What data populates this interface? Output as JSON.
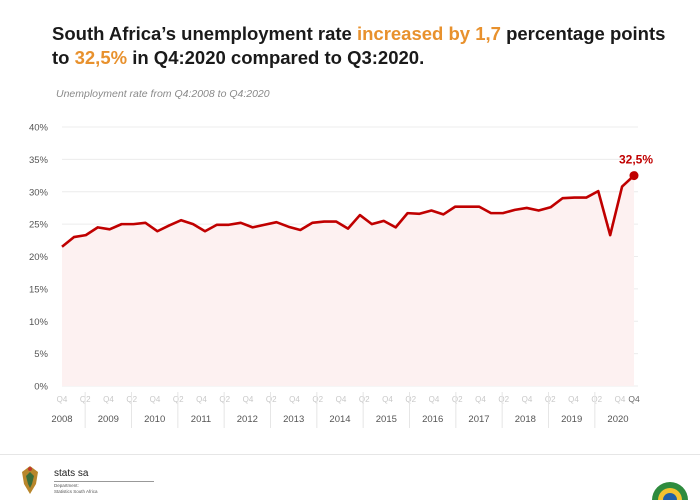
{
  "headline": {
    "part1": "South Africa’s unemployment rate ",
    "highlight1": "increased by 1,7",
    "part2": " percentage points to ",
    "highlight2": "32,5%",
    "part3": " in Q4:2020 compared to Q3:2020."
  },
  "subtitle": "Unemployment rate from Q4:2008 to Q4:2020",
  "colors": {
    "line": "#c00000",
    "highlight": "#e8912d",
    "fill": "#fdf1f1",
    "grid": "#ececec",
    "axis_text": "#555555",
    "quarter_text": "#c8c8c8"
  },
  "chart_data": {
    "type": "area",
    "title": "Unemployment rate from Q4:2008 to Q4:2020",
    "y_ticks": [
      "0%",
      "5%",
      "10%",
      "15%",
      "20%",
      "25%",
      "30%",
      "35%",
      "40%"
    ],
    "ylim": [
      0,
      40
    ],
    "year_labels": [
      "2008",
      "2009",
      "2010",
      "2011",
      "2012",
      "2013",
      "2014",
      "2015",
      "2016",
      "2017",
      "2018",
      "2019",
      "2020"
    ],
    "quarter_labels": [
      "Q4",
      "Q2",
      "Q4",
      "Q2",
      "Q4",
      "Q2",
      "Q4",
      "Q2",
      "Q4",
      "Q2",
      "Q4",
      "Q2",
      "Q4",
      "Q2",
      "Q4",
      "Q2",
      "Q4",
      "Q2",
      "Q4",
      "Q2",
      "Q4",
      "Q2",
      "Q4",
      "Q2",
      "Q4"
    ],
    "final_quarter_label": "Q4",
    "end_label": "32,5%",
    "series": [
      {
        "values": [
          21.5,
          23.0,
          23.3,
          24.5,
          24.2,
          25.0,
          25.0,
          25.2,
          23.9,
          24.8,
          25.6,
          25.0,
          23.9,
          24.9,
          24.9,
          25.2,
          24.5,
          24.9,
          25.3,
          24.6,
          24.1,
          25.2,
          25.4,
          25.4,
          24.3,
          26.4,
          25.0,
          25.5,
          24.5,
          26.7,
          26.6,
          27.1,
          26.5,
          27.7,
          27.7,
          27.7,
          26.7,
          26.7,
          27.2,
          27.5,
          27.1,
          27.6,
          29.0,
          29.1,
          29.1,
          30.1,
          23.3,
          30.8,
          32.5
        ]
      }
    ],
    "grid": true,
    "legend": "none"
  }
}
